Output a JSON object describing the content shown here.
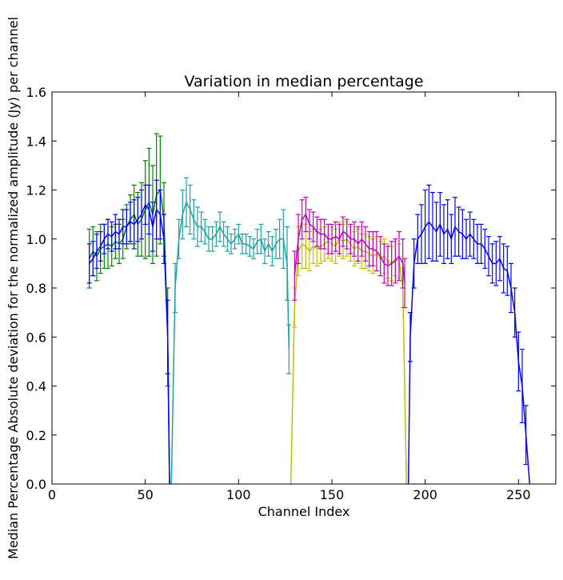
{
  "chart_data": {
    "type": "line",
    "title": "Variation in median percentage",
    "xlabel": "Channel Index",
    "ylabel": "Median Percentage Absolute deviation for the normalized amplitude (Jy) per channel",
    "xlim": [
      0,
      270
    ],
    "ylim": [
      0,
      1.6
    ],
    "xticks": [
      0,
      50,
      100,
      150,
      200,
      250
    ],
    "yticks": [
      0.0,
      0.2,
      0.4,
      0.6,
      0.8,
      1.0,
      1.2,
      1.4,
      1.6
    ],
    "grid": false,
    "error_bars": true,
    "series": [
      {
        "color": "#008000",
        "x": [
          20,
          22,
          24,
          26,
          28,
          30,
          32,
          34,
          36,
          38,
          40,
          42,
          44,
          46,
          48,
          50,
          52,
          54,
          56,
          58,
          60,
          62,
          63
        ],
        "y": [
          0.92,
          0.95,
          0.93,
          0.96,
          0.97,
          0.98,
          0.97,
          0.99,
          0.98,
          1.0,
          1.05,
          1.08,
          1.1,
          1.06,
          1.08,
          1.12,
          1.15,
          1.1,
          1.18,
          1.2,
          1.08,
          0.6,
          0.0
        ],
        "err": [
          0.12,
          0.1,
          0.1,
          0.1,
          0.09,
          0.1,
          0.08,
          0.07,
          0.08,
          0.08,
          0.09,
          0.1,
          0.12,
          0.13,
          0.15,
          0.2,
          0.22,
          0.2,
          0.25,
          0.22,
          0.15,
          0.2,
          0.0
        ]
      },
      {
        "color": "#0000ff",
        "x": [
          20,
          22,
          24,
          26,
          28,
          30,
          32,
          34,
          36,
          38,
          40,
          42,
          44,
          46,
          48,
          50,
          52,
          54,
          56,
          58,
          60,
          62,
          63
        ],
        "y": [
          0.9,
          0.92,
          0.95,
          0.97,
          1.0,
          1.02,
          1.01,
          1.03,
          1.02,
          1.05,
          1.05,
          1.07,
          1.06,
          1.08,
          1.1,
          1.14,
          1.12,
          1.05,
          1.12,
          1.1,
          1.0,
          0.6,
          0.0
        ],
        "err": [
          0.08,
          0.07,
          0.07,
          0.06,
          0.06,
          0.06,
          0.06,
          0.07,
          0.06,
          0.07,
          0.07,
          0.08,
          0.1,
          0.09,
          0.1,
          0.08,
          0.1,
          0.1,
          0.12,
          0.1,
          0.1,
          0.15,
          0.0
        ]
      },
      {
        "color": "#20a0a0",
        "x": [
          64,
          66,
          68,
          70,
          72,
          74,
          76,
          78,
          80,
          82,
          84,
          86,
          88,
          90,
          92,
          94,
          96,
          98,
          100,
          102,
          104,
          106,
          108,
          110,
          112,
          114,
          116,
          118,
          120,
          122,
          124,
          126,
          127
        ],
        "y": [
          0.0,
          0.8,
          1.0,
          1.1,
          1.15,
          1.12,
          1.08,
          1.05,
          1.05,
          1.03,
          1.0,
          1.0,
          1.02,
          1.05,
          1.02,
          1.0,
          0.98,
          1.0,
          1.02,
          0.98,
          0.98,
          0.97,
          0.96,
          0.99,
          1.0,
          0.95,
          0.98,
          0.95,
          0.98,
          1.0,
          1.0,
          0.9,
          0.55
        ],
        "err": [
          0.0,
          0.1,
          0.08,
          0.1,
          0.1,
          0.1,
          0.08,
          0.08,
          0.06,
          0.05,
          0.05,
          0.05,
          0.05,
          0.06,
          0.05,
          0.05,
          0.04,
          0.04,
          0.04,
          0.04,
          0.04,
          0.04,
          0.04,
          0.05,
          0.06,
          0.05,
          0.05,
          0.06,
          0.06,
          0.08,
          0.12,
          0.15,
          0.1
        ]
      },
      {
        "color": "#bfbf00",
        "x": [
          128,
          130,
          132,
          134,
          136,
          138,
          140,
          142,
          144,
          146,
          148,
          150,
          152,
          154,
          156,
          158,
          160,
          162,
          164,
          166,
          168,
          170,
          172,
          174,
          176,
          178,
          180,
          182,
          184,
          186,
          188,
          190
        ],
        "y": [
          0.0,
          0.72,
          0.95,
          0.98,
          0.97,
          0.95,
          0.97,
          0.96,
          0.97,
          0.98,
          0.99,
          0.98,
          0.97,
          1.0,
          0.99,
          1.0,
          0.98,
          0.96,
          0.97,
          0.95,
          0.95,
          0.94,
          0.93,
          0.94,
          0.92,
          0.93,
          0.91,
          0.9,
          0.92,
          0.91,
          0.8,
          0.0
        ],
        "err": [
          0.0,
          0.08,
          0.1,
          0.1,
          0.09,
          0.08,
          0.07,
          0.07,
          0.07,
          0.07,
          0.07,
          0.07,
          0.07,
          0.07,
          0.07,
          0.07,
          0.07,
          0.07,
          0.07,
          0.07,
          0.07,
          0.07,
          0.07,
          0.07,
          0.07,
          0.07,
          0.07,
          0.07,
          0.07,
          0.07,
          0.08,
          0.0
        ]
      },
      {
        "color": "#bf00bf",
        "x": [
          130,
          132,
          134,
          136,
          138,
          140,
          142,
          144,
          146,
          148,
          150,
          152,
          154,
          156,
          158,
          160,
          162,
          164,
          166,
          168,
          170,
          172,
          174,
          176,
          178,
          180,
          182,
          184,
          186,
          188,
          189
        ],
        "y": [
          0.85,
          1.0,
          1.08,
          1.1,
          1.06,
          1.05,
          1.03,
          1.02,
          1.02,
          1.0,
          1.0,
          1.01,
          1.0,
          1.03,
          1.02,
          1.0,
          1.0,
          0.98,
          1.0,
          0.98,
          0.96,
          0.96,
          0.95,
          0.93,
          0.9,
          0.89,
          0.9,
          0.91,
          0.93,
          0.9,
          0.82
        ],
        "err": [
          0.1,
          0.1,
          0.08,
          0.07,
          0.06,
          0.06,
          0.06,
          0.06,
          0.06,
          0.06,
          0.06,
          0.06,
          0.06,
          0.06,
          0.06,
          0.06,
          0.07,
          0.07,
          0.07,
          0.07,
          0.07,
          0.07,
          0.08,
          0.08,
          0.08,
          0.08,
          0.09,
          0.09,
          0.1,
          0.1,
          0.1
        ]
      },
      {
        "color": "#0000ff",
        "x": [
          191,
          192,
          194,
          196,
          198,
          200,
          202,
          204,
          206,
          208,
          210,
          212,
          214,
          216,
          218,
          220,
          222,
          224,
          226,
          228,
          230,
          232,
          234,
          236,
          238,
          240,
          242,
          244,
          246,
          248,
          250,
          252,
          254,
          256
        ],
        "y": [
          0.0,
          0.6,
          0.9,
          1.0,
          1.02,
          1.05,
          1.07,
          1.05,
          1.03,
          1.06,
          1.02,
          1.04,
          1.0,
          1.05,
          1.03,
          1.02,
          1.0,
          1.02,
          1.0,
          0.98,
          0.98,
          0.96,
          0.93,
          0.9,
          0.9,
          0.92,
          0.88,
          0.87,
          0.8,
          0.7,
          0.5,
          0.4,
          0.2,
          0.0
        ],
        "err": [
          0.0,
          0.1,
          0.1,
          0.1,
          0.12,
          0.15,
          0.15,
          0.14,
          0.12,
          0.13,
          0.12,
          0.12,
          0.1,
          0.12,
          0.1,
          0.1,
          0.08,
          0.09,
          0.08,
          0.08,
          0.08,
          0.08,
          0.08,
          0.08,
          0.09,
          0.09,
          0.1,
          0.1,
          0.1,
          0.1,
          0.12,
          0.15,
          0.12,
          0.0
        ]
      }
    ]
  }
}
